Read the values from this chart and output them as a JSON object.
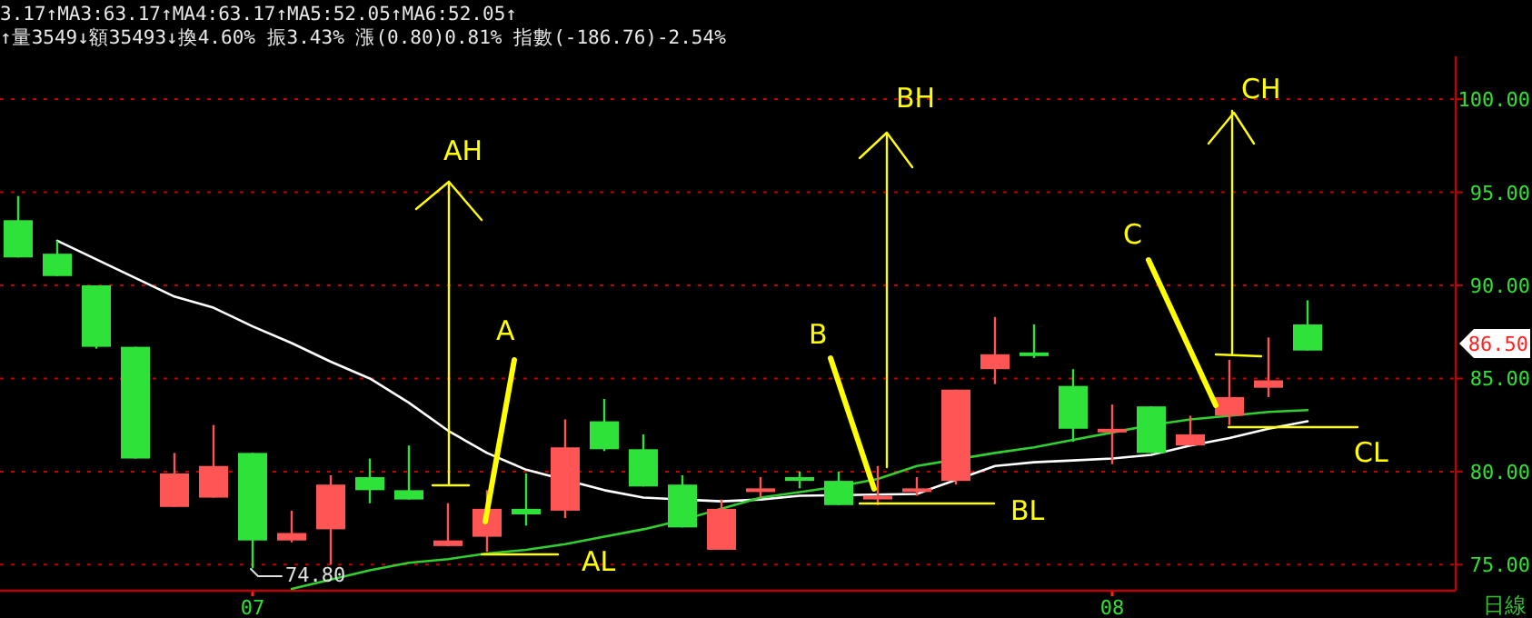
{
  "chart_data": {
    "type": "candlestick",
    "title": "3.17↑MA3:63.17↑MA4:63.17↑MA5:52.05↑MA6:52.05↑",
    "subtitle": "↑量3549↓額35493↓換4.60% 振3.43% 漲(0.80)0.81% 指數(-186.76)-2.54%",
    "categories": [
      null,
      null,
      null,
      null,
      null,
      null,
      "07",
      null,
      null,
      null,
      null,
      null,
      null,
      null,
      null,
      null,
      null,
      null,
      null,
      null,
      null,
      null,
      null,
      null,
      null,
      null,
      null,
      null,
      "08",
      null,
      null,
      null,
      null,
      null
    ],
    "ohlc": [
      [
        93.5,
        94.8,
        91.5,
        91.5
      ],
      [
        91.7,
        92.4,
        90.5,
        90.5
      ],
      [
        90.0,
        90.0,
        86.6,
        86.7
      ],
      [
        86.7,
        86.7,
        80.7,
        80.7
      ],
      [
        78.1,
        81.0,
        78.1,
        79.9
      ],
      [
        78.6,
        82.5,
        78.6,
        80.3
      ],
      [
        81.0,
        81.0,
        74.8,
        76.3
      ],
      [
        76.3,
        77.9,
        76.2,
        76.7
      ],
      [
        76.9,
        79.8,
        75.0,
        79.3
      ],
      [
        79.7,
        80.7,
        78.3,
        79.0
      ],
      [
        79.0,
        81.4,
        78.5,
        78.5
      ],
      [
        76.0,
        78.3,
        76.0,
        76.3
      ],
      [
        76.5,
        79.0,
        75.7,
        78.0
      ],
      [
        78.0,
        79.9,
        77.1,
        77.7
      ],
      [
        77.9,
        82.8,
        77.5,
        81.3
      ],
      [
        82.7,
        83.9,
        81.1,
        81.2
      ],
      [
        81.2,
        82.0,
        79.2,
        79.2
      ],
      [
        79.3,
        79.8,
        77.0,
        77.0
      ],
      [
        75.8,
        78.5,
        75.8,
        78.0
      ],
      [
        79.0,
        79.7,
        78.6,
        79.0
      ],
      [
        79.7,
        80.0,
        79.1,
        79.5
      ],
      [
        79.5,
        80.0,
        78.2,
        78.2
      ],
      [
        78.6,
        80.3,
        78.2,
        78.6
      ],
      [
        79.0,
        79.7,
        78.7,
        79.0
      ],
      [
        79.5,
        84.4,
        79.3,
        84.4
      ],
      [
        85.5,
        88.3,
        84.7,
        86.3
      ],
      [
        86.3,
        87.9,
        86.1,
        86.3
      ],
      [
        84.6,
        85.5,
        81.6,
        82.3
      ],
      [
        82.2,
        83.6,
        80.4,
        82.2
      ],
      [
        83.5,
        83.5,
        81.0,
        81.0
      ],
      [
        81.4,
        83.0,
        81.4,
        82.0
      ],
      [
        83.0,
        86.0,
        82.5,
        84.0
      ],
      [
        84.5,
        87.2,
        84.0,
        84.9
      ],
      [
        87.9,
        89.2,
        86.5,
        86.5
      ]
    ],
    "colors": [
      "#2ee23a",
      "#2ee23a",
      "#2ee23a",
      "#2ee23a",
      "#ff5555",
      "#ff5555",
      "#2ee23a",
      "#ff5555",
      "#ff5555",
      "#2ee23a",
      "#2ee23a",
      "#ff5555",
      "#ff5555",
      "#2ee23a",
      "#ff5555",
      "#2ee23a",
      "#2ee23a",
      "#2ee23a",
      "#ff5555",
      "#ff5555",
      "#2ee23a",
      "#2ee23a",
      "#ff5555",
      "#ff5555",
      "#ff5555",
      "#ff5555",
      "#2ee23a",
      "#2ee23a",
      "#ff5555",
      "#2ee23a",
      "#ff5555",
      "#ff5555",
      "#ff5555",
      "#2ee23a"
    ],
    "series": [
      {
        "type": "line",
        "color": "#ffffff",
        "values": [
          null,
          92.4,
          91.4,
          90.4,
          89.4,
          88.8,
          87.8,
          86.9,
          85.9,
          85.0,
          83.7,
          82.2,
          81.0,
          80.1,
          null,
          79.0,
          78.6,
          null,
          78.4,
          78.5,
          78.7,
          null,
          null,
          78.8,
          null,
          80.3,
          80.5,
          80.6,
          80.7,
          80.9,
          81.4,
          81.8,
          82.3,
          82.7
        ]
      },
      {
        "type": "line",
        "color": "#30d030",
        "values": [
          null,
          null,
          null,
          null,
          null,
          null,
          null,
          73.7,
          74.2,
          74.7,
          75.1,
          75.3,
          75.6,
          75.8,
          76.1,
          76.5,
          76.9,
          77.4,
          78.0,
          78.6,
          78.9,
          79.2,
          79.6,
          80.3,
          null,
          81.0,
          81.3,
          81.7,
          82.1,
          82.5,
          82.8,
          83.0,
          83.2,
          83.3
        ]
      }
    ],
    "annotations": [
      "AH",
      "A",
      "AL",
      "B",
      "BH",
      "BL",
      "C",
      "CH",
      "CL",
      "74.80",
      "86.50",
      "日線"
    ],
    "ylim": [
      73.6,
      102.3
    ],
    "yticks": [
      {
        "value": 75,
        "label": "75.00"
      },
      {
        "value": 80,
        "label": "80.00"
      },
      {
        "value": 85,
        "label": "85.00"
      },
      {
        "value": 90,
        "label": "90.00"
      },
      {
        "value": 95,
        "label": "95.00"
      },
      {
        "value": 100,
        "label": "100.00"
      }
    ],
    "grid": "y"
  }
}
